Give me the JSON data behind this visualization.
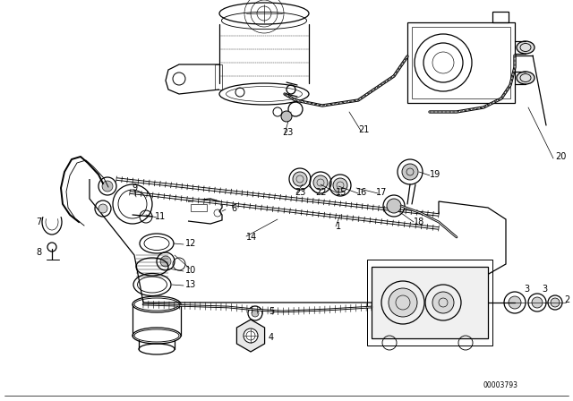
{
  "bg_color": "#ffffff",
  "line_color": "#000000",
  "fig_width": 6.4,
  "fig_height": 4.48,
  "dpi": 100,
  "diagram_code": "00003793",
  "lw_main": 0.9,
  "lw_thin": 0.5,
  "lw_thick": 1.4,
  "font_size": 7.0
}
